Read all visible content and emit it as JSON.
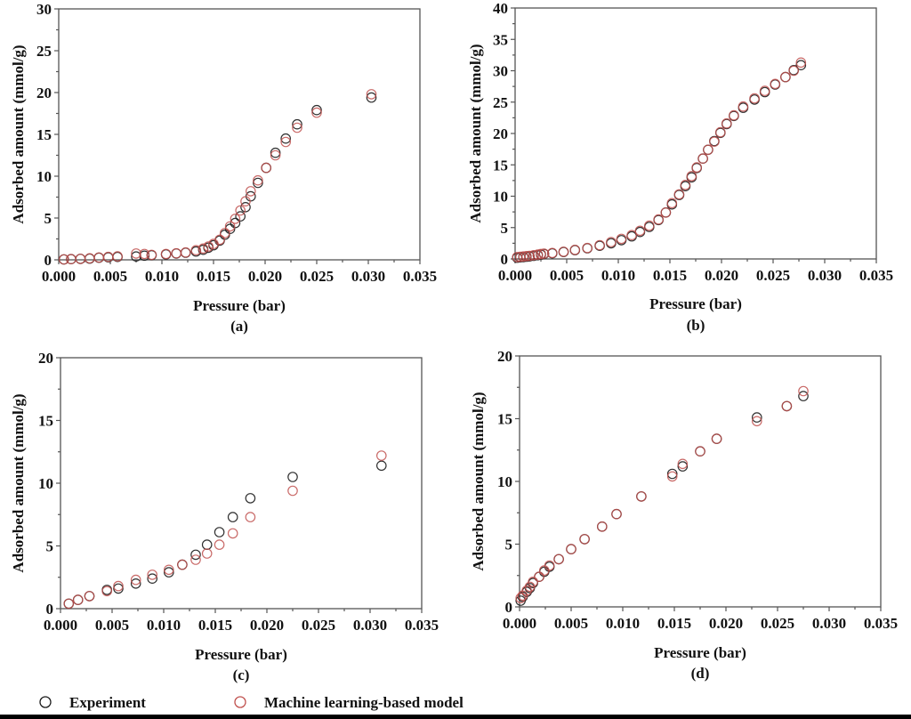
{
  "colors": {
    "experiment": "#1a1a1a",
    "model": "#c0504d",
    "axis": "#555555",
    "text": "#111111"
  },
  "legend": {
    "items": [
      {
        "label": "Experiment",
        "series": "experiment",
        "marker": "open-circle"
      },
      {
        "label": "Machine learning-based model",
        "series": "model",
        "marker": "open-circle"
      }
    ],
    "placement": "bottom-left"
  },
  "chart_data": [
    {
      "id": "a",
      "type": "scatter",
      "panel_label": "(a)",
      "xlabel": "Pressure (bar)",
      "ylabel": "Adsorbed amount (mmol/g)",
      "xlim": [
        0,
        0.035
      ],
      "ylim": [
        0,
        30
      ],
      "xticks": [
        "0.000",
        "0.005",
        "0.010",
        "0.015",
        "0.020",
        "0.025",
        "0.030",
        "0.035"
      ],
      "yticks": [
        "0",
        "5",
        "10",
        "15",
        "20",
        "25",
        "30"
      ],
      "series": [
        {
          "name": "Experiment",
          "x": [
            0.0005,
            0.0012,
            0.0021,
            0.003,
            0.0039,
            0.0048,
            0.0057,
            0.0075,
            0.0083,
            0.009,
            0.0104,
            0.0114,
            0.0123,
            0.0133,
            0.014,
            0.0145,
            0.015,
            0.0156,
            0.0161,
            0.0166,
            0.0171,
            0.0176,
            0.0181,
            0.0186,
            0.0193,
            0.0201,
            0.021,
            0.022,
            0.0231,
            0.025,
            0.0303
          ],
          "y": [
            0.05,
            0.08,
            0.12,
            0.15,
            0.25,
            0.3,
            0.35,
            0.4,
            0.5,
            0.55,
            0.65,
            0.75,
            0.85,
            1.0,
            1.2,
            1.45,
            1.75,
            2.3,
            3.0,
            3.7,
            4.4,
            5.2,
            6.3,
            7.6,
            9.2,
            11.0,
            12.8,
            14.5,
            16.2,
            17.9,
            19.4
          ]
        },
        {
          "name": "Machine learning-based model",
          "x": [
            0.0005,
            0.0012,
            0.0021,
            0.003,
            0.0039,
            0.0048,
            0.0057,
            0.0075,
            0.0083,
            0.009,
            0.0104,
            0.0114,
            0.0123,
            0.0133,
            0.014,
            0.0145,
            0.015,
            0.0156,
            0.0161,
            0.0166,
            0.0171,
            0.0176,
            0.0181,
            0.0186,
            0.0193,
            0.0201,
            0.021,
            0.022,
            0.0231,
            0.025,
            0.0303
          ],
          "y": [
            0.05,
            0.08,
            0.12,
            0.18,
            0.28,
            0.35,
            0.42,
            0.75,
            0.7,
            0.6,
            0.7,
            0.78,
            0.88,
            1.15,
            1.35,
            1.6,
            1.9,
            2.4,
            3.2,
            4.0,
            4.9,
            5.9,
            7.0,
            8.2,
            9.5,
            11.0,
            12.5,
            14.1,
            15.8,
            17.6,
            19.8
          ]
        }
      ]
    },
    {
      "id": "b",
      "type": "scatter",
      "panel_label": "(b)",
      "xlabel": "Pressure (bar)",
      "ylabel": "Adsorbed amount (mmol/g)",
      "xlim": [
        0,
        0.035
      ],
      "ylim": [
        0,
        40
      ],
      "xticks": [
        "0.000",
        "0.005",
        "0.010",
        "0.015",
        "0.020",
        "0.025",
        "0.030",
        "0.035"
      ],
      "yticks": [
        "0",
        "5",
        "10",
        "15",
        "20",
        "25",
        "30",
        "35",
        "40"
      ],
      "series": [
        {
          "name": "Experiment",
          "x": [
            0.0002,
            0.0005,
            0.0008,
            0.0011,
            0.0014,
            0.0018,
            0.0022,
            0.0025,
            0.0028,
            0.0036,
            0.0047,
            0.0058,
            0.007,
            0.0082,
            0.0093,
            0.0103,
            0.0113,
            0.0121,
            0.013,
            0.0139,
            0.0146,
            0.0152,
            0.0159,
            0.0165,
            0.0171,
            0.0176,
            0.0182,
            0.0187,
            0.0193,
            0.0199,
            0.0205,
            0.0212,
            0.0221,
            0.0232,
            0.0242,
            0.0252,
            0.0262,
            0.027,
            0.0277
          ],
          "y": [
            0.2,
            0.25,
            0.3,
            0.35,
            0.4,
            0.5,
            0.6,
            0.7,
            0.8,
            0.9,
            1.1,
            1.4,
            1.7,
            2.1,
            2.5,
            3.0,
            3.6,
            4.3,
            5.1,
            6.2,
            7.4,
            8.7,
            10.2,
            11.6,
            13.0,
            14.5,
            16.0,
            17.4,
            18.8,
            20.1,
            21.5,
            22.8,
            24.1,
            25.4,
            26.6,
            27.8,
            29.0,
            30.1,
            30.9
          ]
        },
        {
          "name": "Machine learning-based model",
          "x": [
            0.0002,
            0.0005,
            0.0008,
            0.0011,
            0.0014,
            0.0018,
            0.0022,
            0.0025,
            0.0028,
            0.0036,
            0.0047,
            0.0058,
            0.007,
            0.0082,
            0.0093,
            0.0103,
            0.0113,
            0.0121,
            0.013,
            0.0139,
            0.0146,
            0.0152,
            0.0159,
            0.0165,
            0.0171,
            0.0176,
            0.0182,
            0.0187,
            0.0193,
            0.0199,
            0.0205,
            0.0212,
            0.0221,
            0.0232,
            0.0242,
            0.0252,
            0.0262,
            0.027,
            0.0277
          ],
          "y": [
            0.3,
            0.35,
            0.4,
            0.45,
            0.5,
            0.6,
            0.7,
            0.8,
            0.85,
            0.95,
            1.15,
            1.45,
            1.75,
            2.2,
            2.7,
            3.2,
            3.8,
            4.5,
            5.3,
            6.3,
            7.4,
            8.9,
            10.3,
            11.8,
            13.2,
            14.6,
            16.0,
            17.4,
            18.7,
            20.2,
            21.6,
            22.9,
            24.3,
            25.6,
            26.8,
            27.9,
            29.0,
            30.0,
            31.3
          ]
        }
      ]
    },
    {
      "id": "c",
      "type": "scatter",
      "panel_label": "(c)",
      "xlabel": "Pressure (bar)",
      "ylabel": "Adsorbed amount (mmol/g)",
      "xlim": [
        0,
        0.035
      ],
      "ylim": [
        0,
        20
      ],
      "xticks": [
        "0.000",
        "0.005",
        "0.010",
        "0.015",
        "0.020",
        "0.025",
        "0.030",
        "0.035"
      ],
      "yticks": [
        "0",
        "5",
        "10",
        "15",
        "20"
      ],
      "series": [
        {
          "name": "Experiment",
          "x": [
            0.0008,
            0.0017,
            0.0028,
            0.0045,
            0.0056,
            0.0073,
            0.0089,
            0.0105,
            0.0118,
            0.0131,
            0.0142,
            0.0154,
            0.0167,
            0.0184,
            0.0225,
            0.0311
          ],
          "y": [
            0.4,
            0.7,
            1.0,
            1.5,
            1.6,
            2.0,
            2.4,
            2.9,
            3.5,
            4.3,
            5.1,
            6.1,
            7.3,
            8.8,
            10.5,
            11.4
          ]
        },
        {
          "name": "Machine learning-based model",
          "x": [
            0.0008,
            0.0017,
            0.0028,
            0.0045,
            0.0056,
            0.0073,
            0.0089,
            0.0105,
            0.0118,
            0.0131,
            0.0142,
            0.0154,
            0.0167,
            0.0184,
            0.0225,
            0.0311
          ],
          "y": [
            0.4,
            0.7,
            1.0,
            1.4,
            1.8,
            2.3,
            2.7,
            3.1,
            3.5,
            3.9,
            4.4,
            5.1,
            6.0,
            7.3,
            9.4,
            12.2
          ]
        }
      ]
    },
    {
      "id": "d",
      "type": "scatter",
      "panel_label": "(d)",
      "xlabel": "Pressure (bar)",
      "ylabel": "Adsorbed amount (mmol/g)",
      "xlim": [
        0,
        0.035
      ],
      "ylim": [
        0,
        20
      ],
      "xticks": [
        "0.000",
        "0.005",
        "0.010",
        "0.015",
        "0.020",
        "0.025",
        "0.030",
        "0.035"
      ],
      "yticks": [
        "0",
        "5",
        "10",
        "15",
        "20"
      ],
      "series": [
        {
          "name": "Experiment",
          "x": [
            0.0001,
            0.0003,
            0.0007,
            0.001,
            0.0013,
            0.0019,
            0.0024,
            0.0029,
            0.0038,
            0.005,
            0.0063,
            0.008,
            0.0094,
            0.0118,
            0.0148,
            0.0158,
            0.0175,
            0.0191,
            0.023,
            0.0259,
            0.0275
          ],
          "y": [
            0.5,
            0.8,
            1.2,
            1.5,
            1.9,
            2.4,
            2.8,
            3.2,
            3.8,
            4.6,
            5.4,
            6.4,
            7.4,
            8.8,
            10.6,
            11.2,
            12.4,
            13.4,
            15.1,
            16.0,
            16.8
          ]
        },
        {
          "name": "Machine learning-based model",
          "x": [
            0.0001,
            0.0003,
            0.0007,
            0.001,
            0.0013,
            0.0019,
            0.0024,
            0.0029,
            0.0038,
            0.005,
            0.0063,
            0.008,
            0.0094,
            0.0118,
            0.0148,
            0.0158,
            0.0175,
            0.0191,
            0.023,
            0.0259,
            0.0275
          ],
          "y": [
            0.7,
            0.9,
            1.3,
            1.6,
            2.0,
            2.4,
            2.9,
            3.3,
            3.8,
            4.6,
            5.4,
            6.4,
            7.4,
            8.8,
            10.4,
            11.4,
            12.4,
            13.4,
            14.8,
            16.0,
            17.2
          ]
        }
      ]
    }
  ]
}
